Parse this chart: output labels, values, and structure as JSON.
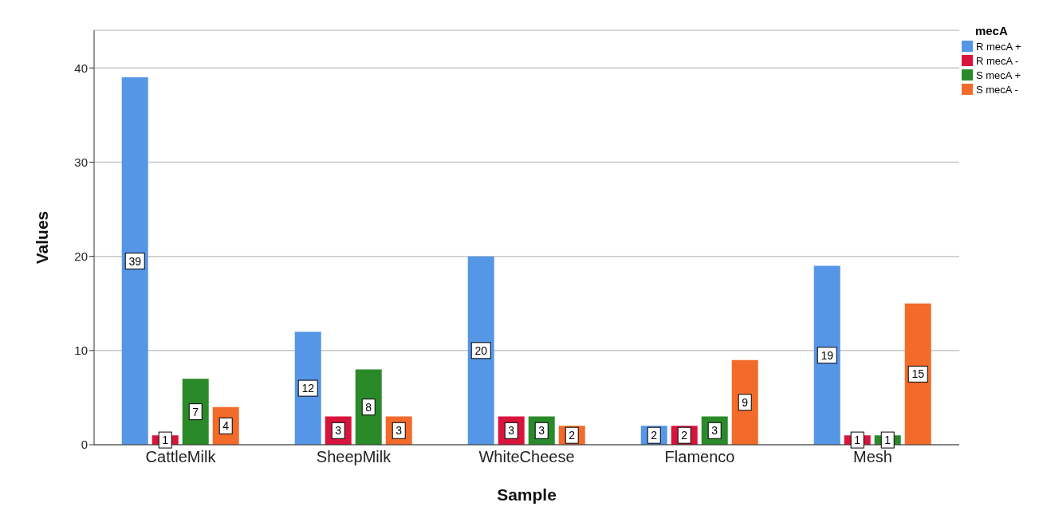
{
  "chart_data": {
    "type": "bar",
    "xlabel": "Sample",
    "ylabel": "Values",
    "legend_title": "mecA",
    "categories": [
      "CattleMilk",
      "SheepMilk",
      "WhiteCheese",
      "Flamenco",
      "Mesh"
    ],
    "series": [
      {
        "name": "R mecA +",
        "color": "#5596e6",
        "values": [
          39,
          12,
          20,
          2,
          19
        ]
      },
      {
        "name": "R mecA -",
        "color": "#d8143c",
        "values": [
          1,
          3,
          3,
          2,
          1
        ]
      },
      {
        "name": "S mecA +",
        "color": "#2a8a2a",
        "values": [
          7,
          8,
          3,
          3,
          1
        ]
      },
      {
        "name": "S mecA -",
        "color": "#f26b2b",
        "values": [
          4,
          3,
          2,
          9,
          15
        ]
      }
    ],
    "ylim": [
      0,
      44
    ],
    "yticks": [
      0,
      10,
      20,
      30,
      40
    ],
    "grid": "y",
    "legend": "top right",
    "data_labels": true
  }
}
